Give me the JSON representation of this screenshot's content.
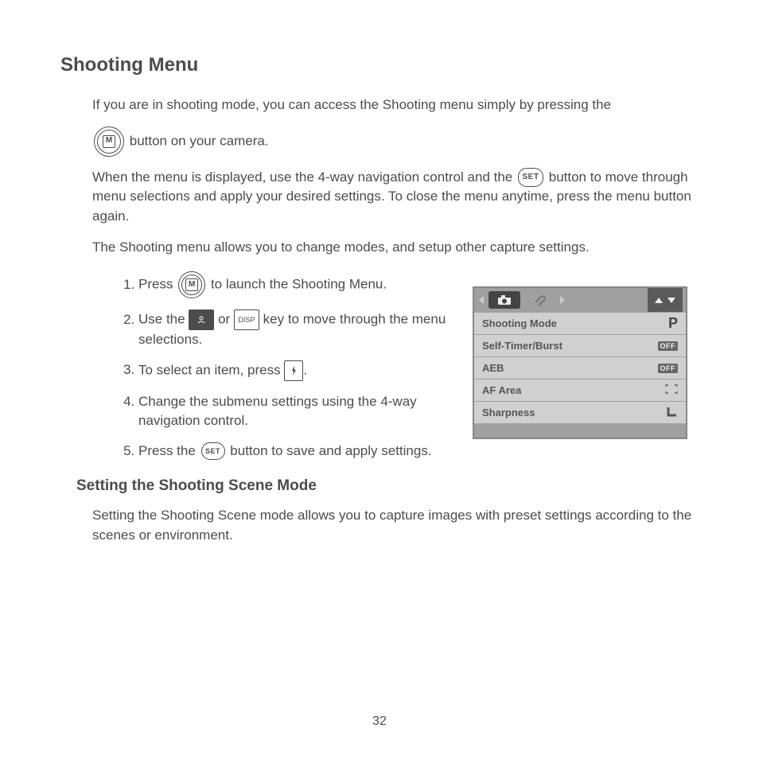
{
  "title": "Shooting Menu",
  "intro_before": "If you are in shooting mode, you can access the Shooting menu simply by pressing the",
  "intro_after": "button on your camera.",
  "para2_before": "When the menu is displayed, use the 4-way navigation control and the",
  "para2_after": "button to move through menu selections and apply your desired settings. To close the menu anytime, press the menu button again.",
  "para3": "The Shooting menu allows you to change modes, and setup other capture settings.",
  "steps": {
    "s1a": "Press",
    "s1b": "to launch the Shooting Menu.",
    "s2a": "Use the",
    "s2b": "or",
    "s2c": "key to move through the menu selections.",
    "s3a": "To select an item, press",
    "s3b": ".",
    "s4": "Change the submenu settings using the 4-way navigation control.",
    "s5a": "Press the",
    "s5b": "button to save and apply settings."
  },
  "buttons": {
    "menu_label": "M",
    "set_label": "SET",
    "disp_label": "DISP"
  },
  "subheading": "Setting the Shooting Scene Mode",
  "sub_para": "Setting the Shooting Scene mode allows you to capture images with preset settings according to the scenes or environment.",
  "page_number": "32",
  "ui": {
    "rows": [
      {
        "label": "Shooting Mode",
        "value": "P",
        "value_type": "text"
      },
      {
        "label": "Self-Timer/Burst",
        "value": "OFF",
        "value_type": "badge"
      },
      {
        "label": "AEB",
        "value": "OFF",
        "value_type": "badge"
      },
      {
        "label": "AF Area",
        "value": "",
        "value_type": "bracket"
      },
      {
        "label": "Sharpness",
        "value": "",
        "value_type": "corner"
      }
    ],
    "colors": {
      "box_bg": "#a0a0a0",
      "row_bg": "#d0d0d0",
      "active_tab": "#444444",
      "arrows_bg": "#5a5a5a"
    }
  }
}
